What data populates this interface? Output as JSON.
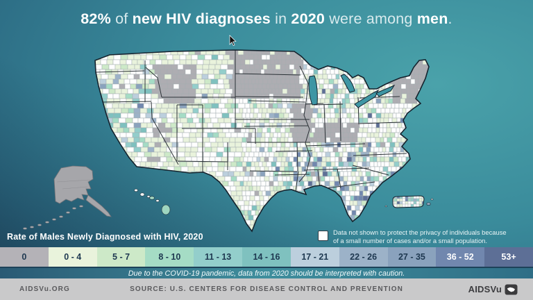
{
  "title": {
    "parts": [
      {
        "text": "82%",
        "emphasis": true
      },
      {
        "text": " of ",
        "emphasis": false
      },
      {
        "text": "new HIV diagnoses",
        "emphasis": true
      },
      {
        "text": " in ",
        "emphasis": false
      },
      {
        "text": "2020",
        "emphasis": true
      },
      {
        "text": " were among ",
        "emphasis": false
      },
      {
        "text": "men",
        "emphasis": true
      },
      {
        "text": ".",
        "emphasis": false
      }
    ]
  },
  "legend": {
    "heading": "Rate of Males Newly Diagnosed with HIV, 2020",
    "note_line1": "Data not shown to protect the privacy of individuals because",
    "note_line2": "of a small number of cases and/or a small population."
  },
  "caution": "Due to the COVID-19 pandemic, data from 2020 should be interpreted with caution.",
  "footer": {
    "site": "AIDSVu.ORG",
    "source": "SOURCE: U.S. CENTERS FOR DISEASE CONTROL AND PREVENTION",
    "brand": "AIDSVu"
  },
  "chart_data": {
    "type": "choropleth",
    "title": "82% of new HIV diagnoses in 2020 were among men.",
    "headline_stat": {
      "value": "82%",
      "group": "men",
      "metric": "share of new HIV diagnoses",
      "year": "2020"
    },
    "legend_title": "Rate of Males Newly Diagnosed with HIV, 2020",
    "geography": "United States counties, with Alaska, Hawaii and Puerto Rico insets",
    "bins": [
      {
        "label": "0",
        "color": "#b4b2b7"
      },
      {
        "label": "0 - 4",
        "color": "#e9f3dc"
      },
      {
        "label": "5 - 7",
        "color": "#cde9c8"
      },
      {
        "label": "8 - 10",
        "color": "#a5dcc5"
      },
      {
        "label": "11 - 13",
        "color": "#93cecb"
      },
      {
        "label": "14 - 16",
        "color": "#7fc1bf"
      },
      {
        "label": "17 - 21",
        "color": "#bccfdd"
      },
      {
        "label": "22 - 26",
        "color": "#9cb2c8"
      },
      {
        "label": "27 - 35",
        "color": "#8aa2bd"
      },
      {
        "label": "36 - 52",
        "color": "#7187ae"
      },
      {
        "label": "53+",
        "color": "#5d6f96"
      }
    ],
    "no_data": {
      "color": "#ffffff",
      "label": "Data not shown to protect the privacy of individuals because of a small number of cases and/or a small population."
    },
    "caution": "Due to the COVID-19 pandemic, data from 2020 should be interpreted with caution.",
    "source": "U.S. CENTERS FOR DISEASE CONTROL AND PREVENTION"
  }
}
